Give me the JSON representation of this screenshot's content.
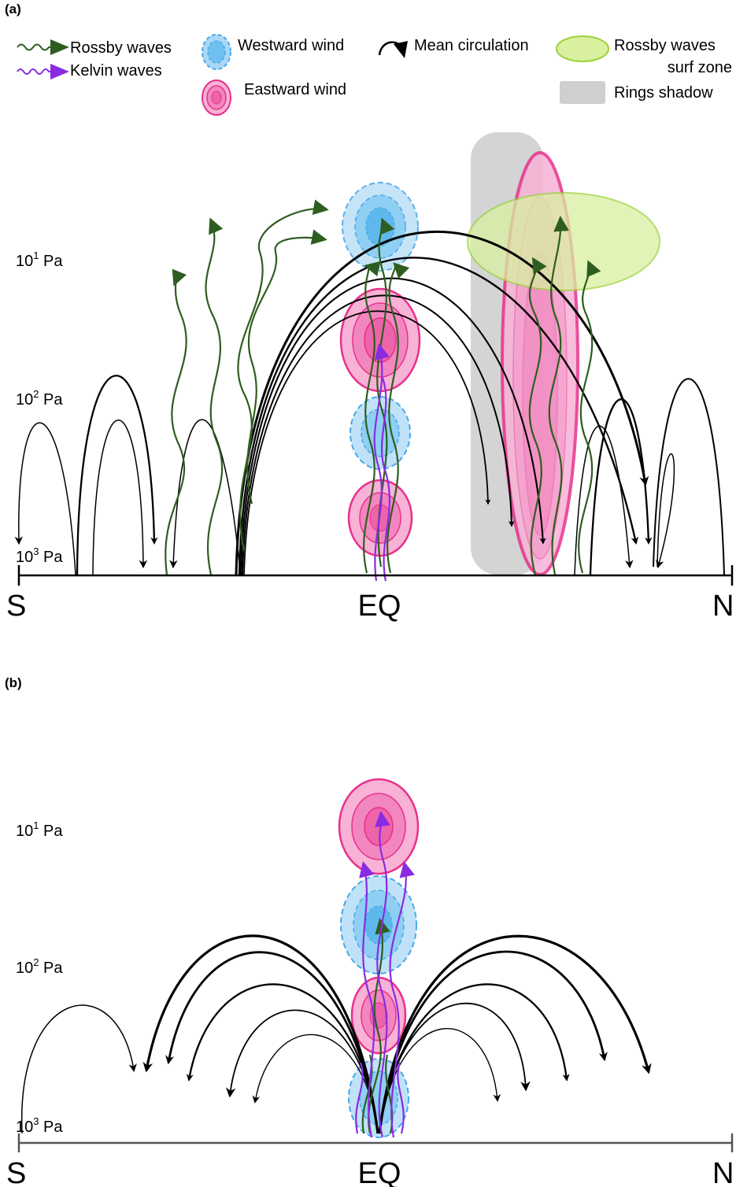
{
  "panels": [
    {
      "id": "a",
      "label": "(a)",
      "pressure_labels": [
        {
          "base": "10",
          "exp": "1",
          "unit": "Pa"
        },
        {
          "base": "10",
          "exp": "2",
          "unit": "Pa"
        },
        {
          "base": "10",
          "exp": "3",
          "unit": "Pa"
        }
      ],
      "axis": {
        "left": "S",
        "center": "EQ",
        "right": "N"
      }
    },
    {
      "id": "b",
      "label": "(b)",
      "pressure_labels": [
        {
          "base": "10",
          "exp": "1",
          "unit": "Pa"
        },
        {
          "base": "10",
          "exp": "2",
          "unit": "Pa"
        },
        {
          "base": "10",
          "exp": "3",
          "unit": "Pa"
        }
      ],
      "axis": {
        "left": "S",
        "center": "EQ",
        "right": "N"
      }
    }
  ],
  "legend": {
    "rossby": "Rossby waves",
    "kelvin": "Kelvin waves",
    "westward": "Westward wind",
    "eastward": "Eastward wind",
    "mean_circulation": "Mean circulation",
    "surf_zone_line1": "Rossby waves",
    "surf_zone_line2": "surf zone",
    "rings_shadow": "Rings shadow"
  },
  "colors": {
    "rossby": "#2e5e1f",
    "kelvin": "#8a2be2",
    "westward": "#4aa8e8",
    "eastward": "#e8308c",
    "surf_zone": "#d9f0a0",
    "rings_shadow": "#cfcfcf",
    "circulation": "#000000"
  }
}
